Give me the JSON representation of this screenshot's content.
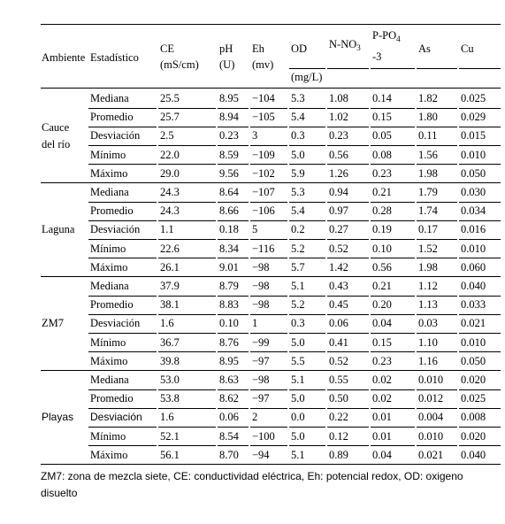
{
  "header": {
    "ambiente": "Ambiente",
    "estadistico": "Estadístico",
    "columns": [
      {
        "lines": [
          "CE",
          "(mS/cm)"
        ]
      },
      {
        "lines": [
          "pH",
          "(U)"
        ]
      },
      {
        "lines": [
          "Eh",
          "(mv)"
        ]
      },
      {
        "lines": [
          "OD"
        ]
      },
      {
        "main": "N-NO",
        "sub": "3"
      },
      {
        "main": "P-PO",
        "sub": "4",
        "line2": "-3"
      },
      {
        "lines": [
          "As"
        ]
      },
      {
        "lines": [
          "Cu"
        ]
      }
    ],
    "unit": "(mg/L)"
  },
  "groups": [
    {
      "ambiente": [
        "Cauce",
        "del río"
      ],
      "rows": [
        {
          "estadistico": "Mediana",
          "values": [
            "25.5",
            "8.95",
            "−104",
            "5.3",
            "1.08",
            "0.14",
            "1.82",
            "0.025"
          ]
        },
        {
          "estadistico": "Promedio",
          "values": [
            "25.7",
            "8.94",
            "−105",
            "5.4",
            "1.02",
            "0.15",
            "1.80",
            "0.029"
          ]
        },
        {
          "estadistico": "Desviación",
          "values": [
            "2.5",
            "0.23",
            "3",
            "0.3",
            "0.23",
            "0.05",
            "0.11",
            "0.015"
          ]
        },
        {
          "estadistico": "Mínimo",
          "values": [
            "22.0",
            "8.59",
            "−109",
            "5.0",
            "0.56",
            "0.08",
            "1.56",
            "0.010"
          ]
        },
        {
          "estadistico": "Máximo",
          "values": [
            "29.0",
            "9.56",
            "−102",
            "5.9",
            "1.26",
            "0.23",
            "1.98",
            "0.050"
          ]
        }
      ]
    },
    {
      "ambiente": [
        "Laguna"
      ],
      "rows": [
        {
          "estadistico": "Mediana",
          "values": [
            "24.3",
            "8.64",
            "−107",
            "5.3",
            "0.94",
            "0.21",
            "1.79",
            "0.030"
          ]
        },
        {
          "estadistico": "Promedio",
          "values": [
            "24.3",
            "8.66",
            "−106",
            "5.4",
            "0.97",
            "0.28",
            "1.74",
            "0.034"
          ]
        },
        {
          "estadistico": "Desviación",
          "values": [
            "1.1",
            "0.18",
            "5",
            "0.2",
            "0.27",
            "0.19",
            "0.17",
            "0.016"
          ]
        },
        {
          "estadistico": "Mínimo",
          "values": [
            "22.6",
            "8.34",
            "−116",
            "5.2",
            "0.52",
            "0.10",
            "1.52",
            "0.010"
          ]
        },
        {
          "estadistico": "Máximo",
          "values": [
            "26.1",
            "9.01",
            "−98",
            "5.7",
            "1.42",
            "0.56",
            "1.98",
            "0.060"
          ]
        }
      ]
    },
    {
      "ambiente": [
        "ZM7"
      ],
      "rows": [
        {
          "estadistico": "Mediana",
          "values": [
            "37.9",
            "8.79",
            "−98",
            "5.1",
            "0.43",
            "0.21",
            "1.12",
            "0.040"
          ]
        },
        {
          "estadistico": "Promedio",
          "values": [
            "38.1",
            "8.83",
            "−98",
            "5.2",
            "0.45",
            "0.20",
            "1.13",
            "0.033"
          ]
        },
        {
          "estadistico": "Desviación",
          "values": [
            "1.6",
            "0.10",
            "1",
            "0.3",
            "0.06",
            "0.04",
            "0.03",
            "0.021"
          ]
        },
        {
          "estadistico": "Mínimo",
          "values": [
            "36.7",
            "8.76",
            "−99",
            "5.0",
            "0.41",
            "0.15",
            "1.10",
            "0.010"
          ]
        },
        {
          "estadistico": "Máximo",
          "values": [
            "39.8",
            "8.95",
            "−97",
            "5.5",
            "0.52",
            "0.23",
            "1.16",
            "0.050"
          ]
        }
      ]
    },
    {
      "ambiente": [
        "Playas"
      ],
      "rows": [
        {
          "estadistico": "Mediana",
          "values": [
            "53.0",
            "8.63",
            "−98",
            "5.1",
            "0.55",
            "0.02",
            "0.010",
            "0.020"
          ]
        },
        {
          "estadistico": "Promedio",
          "values": [
            "53.8",
            "8.62",
            "−97",
            "5.0",
            "0.50",
            "0.02",
            "0.012",
            "0.025"
          ]
        },
        {
          "estadistico": "Desviación",
          "values": [
            "1.6",
            "0.06",
            "2",
            "0.0",
            "0.22",
            "0.01",
            "0.004",
            "0.008"
          ]
        },
        {
          "estadistico": "Mínimo",
          "values": [
            "52.1",
            "8.54",
            "−100",
            "5.0",
            "0.12",
            "0.01",
            "0.010",
            "0.020"
          ]
        },
        {
          "estadistico": "Máximo",
          "values": [
            "56.1",
            "8.70",
            "−94",
            "5.1",
            "0.89",
            "0.04",
            "0.021",
            "0.040"
          ]
        }
      ]
    }
  ],
  "footnote": "ZM7: zona de mezcla siete, CE: conductividad eléctrica, Eh: potencial redox, OD: oxigeno disuelto"
}
